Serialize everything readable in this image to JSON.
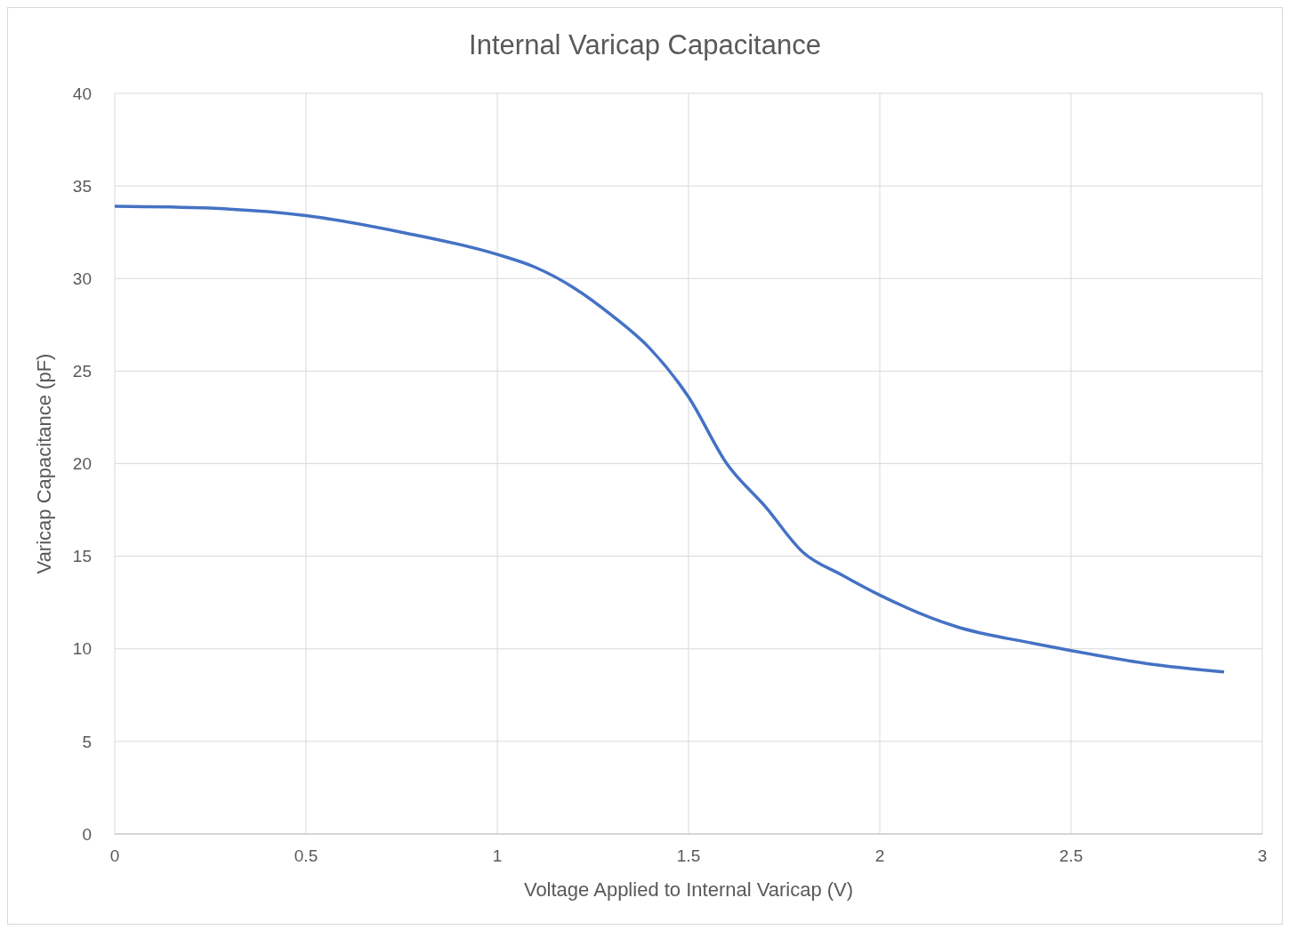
{
  "chart_data": {
    "type": "line",
    "title": "Internal Varicap Capacitance",
    "xlabel": "Voltage Applied to Internal Varicap (V)",
    "ylabel": "Varicap Capacitance (pF)",
    "x": [
      0,
      0.25,
      0.5,
      0.75,
      1,
      1.1,
      1.2,
      1.3,
      1.4,
      1.5,
      1.6,
      1.7,
      1.8,
      1.9,
      2,
      2.2,
      2.4,
      2.5,
      2.7,
      2.9
    ],
    "series": [
      {
        "color": "#4472c4",
        "values": [
          33.9,
          33.8,
          33.4,
          32.5,
          31.3,
          30.6,
          29.5,
          28.0,
          26.2,
          23.6,
          20.0,
          17.7,
          15.2,
          14.0,
          12.9,
          11.2,
          10.3,
          9.9,
          9.2,
          8.75
        ]
      }
    ],
    "xlim": [
      0,
      3
    ],
    "xticks": [
      0,
      0.5,
      1,
      1.5,
      2,
      2.5,
      3
    ],
    "ylim": [
      0,
      40
    ],
    "yticks": [
      0,
      5,
      10,
      15,
      20,
      25,
      30,
      35,
      40
    ],
    "grid": true,
    "legend": false,
    "marker": "none",
    "line_style": "solid"
  }
}
